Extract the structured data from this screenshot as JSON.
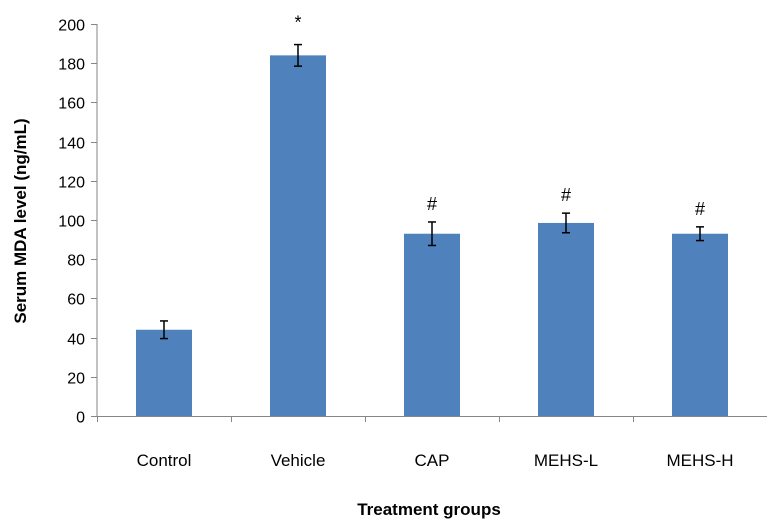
{
  "chart_data": {
    "type": "bar",
    "title": "",
    "xlabel": "Treatment groups",
    "ylabel": "Serum MDA level (ng/mL)",
    "categories": [
      "Control",
      "Vehicle",
      "CAP",
      "MEHS-L",
      "MEHS-H"
    ],
    "values": [
      44,
      184,
      93,
      98.5,
      93
    ],
    "errors": [
      4.5,
      5.5,
      6,
      5,
      3.5
    ],
    "annotations": [
      "",
      "*",
      "#",
      "#",
      "#"
    ],
    "ylim": [
      0,
      200
    ],
    "yticks": [
      0,
      20,
      40,
      60,
      80,
      100,
      120,
      140,
      160,
      180,
      200
    ],
    "grid": false,
    "legend": "none",
    "colors": {
      "bar": "#4f81bd",
      "axis": "#868686",
      "error_bar": "#000000"
    }
  }
}
